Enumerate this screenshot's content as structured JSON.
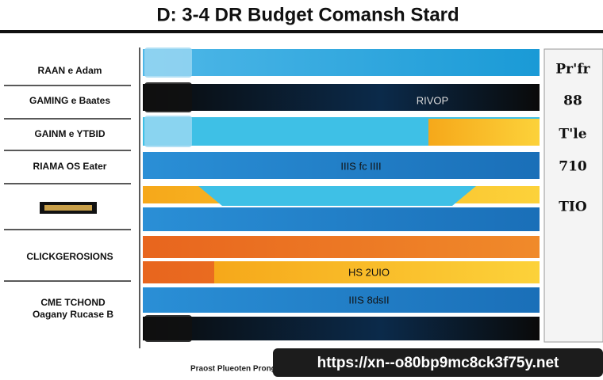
{
  "header": {
    "title": "D: 3-4 DR Budget Comansh Stard"
  },
  "left_labels": [
    "RAAN e Adam",
    "GAMING e Baates",
    "GAINM e YTBID",
    "RIAMA OS Eater",
    "CLICKGEROSIONS",
    "CME TCHOND",
    "Oagany Rucase B"
  ],
  "band_labels": [
    "RIVOP",
    "IIIS fc IIII",
    "HS 2UIO",
    "IIIS 8dsII"
  ],
  "right_labels": [
    "Pr'fr",
    "88",
    "T'le",
    "710",
    "TIO"
  ],
  "footer": {
    "text": "Praost Plueoten Prongy",
    "url": "https://xn--o80bp9mc8ck3f75y.net"
  }
}
